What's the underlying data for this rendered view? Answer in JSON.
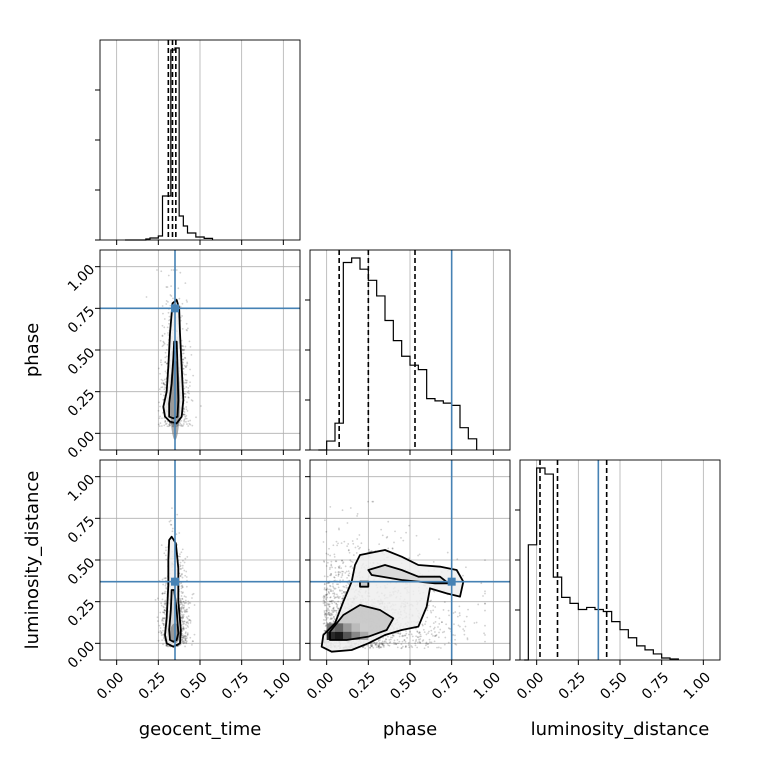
{
  "chart_data": {
    "type": "corner",
    "parameters": [
      "geocent_time",
      "phase",
      "luminosity_distance"
    ],
    "axis_range": [
      -0.1,
      1.1
    ],
    "ticks": [
      0.0,
      0.25,
      0.5,
      0.75,
      1.0
    ],
    "tick_labels": [
      "0.00",
      "0.25",
      "0.50",
      "0.75",
      "1.00"
    ],
    "grid": true,
    "injection_color": "#4682b4",
    "truths": {
      "geocent_time": 0.35,
      "phase": 0.75,
      "luminosity_distance": 0.37
    },
    "histograms": {
      "geocent_time": {
        "x": [
          0.05,
          0.075,
          0.1,
          0.125,
          0.15,
          0.175,
          0.2,
          0.225,
          0.25,
          0.275,
          0.3,
          0.325,
          0.35,
          0.375,
          0.4,
          0.425,
          0.45,
          0.475,
          0.5,
          0.525,
          0.55,
          0.575
        ],
        "values": [
          0.0,
          0.0,
          0.0,
          0.0,
          0.0,
          0.005,
          0.01,
          0.01,
          0.02,
          0.22,
          0.22,
          0.95,
          0.96,
          0.12,
          0.07,
          0.035,
          0.035,
          0.015,
          0.015,
          0.008,
          0.008,
          0.0
        ],
        "quantiles": [
          0.31,
          0.335,
          0.355
        ]
      },
      "phase": {
        "x": [
          -0.05,
          0.0,
          0.05,
          0.1,
          0.15,
          0.2,
          0.25,
          0.3,
          0.35,
          0.4,
          0.45,
          0.5,
          0.55,
          0.6,
          0.65,
          0.7,
          0.75,
          0.8,
          0.85,
          0.9
        ],
        "values": [
          0.0,
          0.04,
          0.12,
          0.84,
          0.86,
          0.81,
          0.76,
          0.69,
          0.58,
          0.49,
          0.42,
          0.38,
          0.36,
          0.23,
          0.22,
          0.21,
          0.2,
          0.1,
          0.05,
          0.0
        ],
        "quantiles": [
          0.075,
          0.25,
          0.53
        ]
      },
      "luminosity_distance": {
        "x": [
          -0.075,
          -0.05,
          0.0,
          0.05,
          0.1,
          0.15,
          0.2,
          0.25,
          0.3,
          0.35,
          0.4,
          0.45,
          0.5,
          0.55,
          0.6,
          0.65,
          0.7,
          0.75,
          0.8,
          0.85
        ],
        "values": [
          0.0,
          0.57,
          0.95,
          0.92,
          0.41,
          0.31,
          0.28,
          0.25,
          0.26,
          0.25,
          0.24,
          0.19,
          0.15,
          0.11,
          0.07,
          0.05,
          0.03,
          0.01,
          0.005,
          0.0
        ],
        "quantiles": [
          0.02,
          0.125,
          0.42
        ]
      }
    },
    "contours": {
      "phase_vs_geocent_time": {
        "x_param": "geocent_time",
        "y_param": "phase",
        "levels": [
          [
            [
              0.335,
              0.78
            ],
            [
              0.36,
              0.8
            ],
            [
              0.375,
              0.75
            ],
            [
              0.38,
              0.6
            ],
            [
              0.39,
              0.4
            ],
            [
              0.4,
              0.2
            ],
            [
              0.39,
              0.1
            ],
            [
              0.36,
              0.06
            ],
            [
              0.32,
              0.07
            ],
            [
              0.29,
              0.1
            ],
            [
              0.28,
              0.16
            ],
            [
              0.3,
              0.25
            ],
            [
              0.31,
              0.4
            ],
            [
              0.32,
              0.6
            ],
            [
              0.33,
              0.72
            ]
          ],
          [
            [
              0.345,
              0.55
            ],
            [
              0.36,
              0.55
            ],
            [
              0.365,
              0.4
            ],
            [
              0.37,
              0.2
            ],
            [
              0.365,
              0.1
            ],
            [
              0.34,
              0.09
            ],
            [
              0.315,
              0.1
            ],
            [
              0.315,
              0.18
            ],
            [
              0.33,
              0.3
            ],
            [
              0.34,
              0.45
            ]
          ]
        ]
      },
      "luminosity_distance_vs_geocent_time": {
        "x_param": "geocent_time",
        "y_param": "luminosity_distance",
        "levels": [
          [
            [
              0.315,
              0.62
            ],
            [
              0.33,
              0.64
            ],
            [
              0.355,
              0.6
            ],
            [
              0.37,
              0.45
            ],
            [
              0.37,
              0.25
            ],
            [
              0.385,
              0.08
            ],
            [
              0.38,
              0.0
            ],
            [
              0.34,
              -0.02
            ],
            [
              0.3,
              0.0
            ],
            [
              0.29,
              0.05
            ],
            [
              0.3,
              0.15
            ],
            [
              0.31,
              0.35
            ],
            [
              0.31,
              0.5
            ]
          ],
          [
            [
              0.33,
              0.32
            ],
            [
              0.345,
              0.32
            ],
            [
              0.36,
              0.2
            ],
            [
              0.37,
              0.06
            ],
            [
              0.36,
              0.02
            ],
            [
              0.34,
              0.01
            ],
            [
              0.32,
              0.02
            ],
            [
              0.315,
              0.08
            ],
            [
              0.325,
              0.2
            ]
          ]
        ]
      },
      "luminosity_distance_vs_phase": {
        "x_param": "phase",
        "y_param": "luminosity_distance",
        "levels": [
          [
            [
              0.2,
              0.53
            ],
            [
              0.35,
              0.56
            ],
            [
              0.45,
              0.52
            ],
            [
              0.55,
              0.47
            ],
            [
              0.68,
              0.46
            ],
            [
              0.78,
              0.44
            ],
            [
              0.82,
              0.37
            ],
            [
              0.8,
              0.28
            ],
            [
              0.72,
              0.3
            ],
            [
              0.62,
              0.33
            ],
            [
              0.6,
              0.22
            ],
            [
              0.55,
              0.1
            ],
            [
              0.45,
              0.08
            ],
            [
              0.35,
              0.05
            ],
            [
              0.25,
              0.0
            ],
            [
              0.15,
              -0.04
            ],
            [
              0.03,
              -0.05
            ],
            [
              -0.03,
              -0.02
            ],
            [
              -0.02,
              0.05
            ],
            [
              0.05,
              0.12
            ],
            [
              0.1,
              0.25
            ],
            [
              0.15,
              0.37
            ],
            [
              0.17,
              0.47
            ]
          ],
          [
            [
              0.25,
              0.44
            ],
            [
              0.35,
              0.47
            ],
            [
              0.45,
              0.44
            ],
            [
              0.55,
              0.4
            ],
            [
              0.68,
              0.4
            ],
            [
              0.73,
              0.36
            ],
            [
              0.65,
              0.36
            ],
            [
              0.55,
              0.37
            ],
            [
              0.45,
              0.38
            ],
            [
              0.33,
              0.4
            ],
            [
              0.27,
              0.41
            ]
          ],
          [
            [
              0.1,
              0.17
            ],
            [
              0.2,
              0.23
            ],
            [
              0.32,
              0.2
            ],
            [
              0.4,
              0.15
            ],
            [
              0.36,
              0.08
            ],
            [
              0.25,
              0.04
            ],
            [
              0.12,
              0.02
            ],
            [
              0.02,
              0.02
            ],
            [
              0.02,
              0.07
            ]
          ],
          [
            [
              0.2,
              0.37
            ],
            [
              0.25,
              0.37
            ],
            [
              0.25,
              0.34
            ],
            [
              0.2,
              0.34
            ]
          ]
        ]
      }
    }
  }
}
